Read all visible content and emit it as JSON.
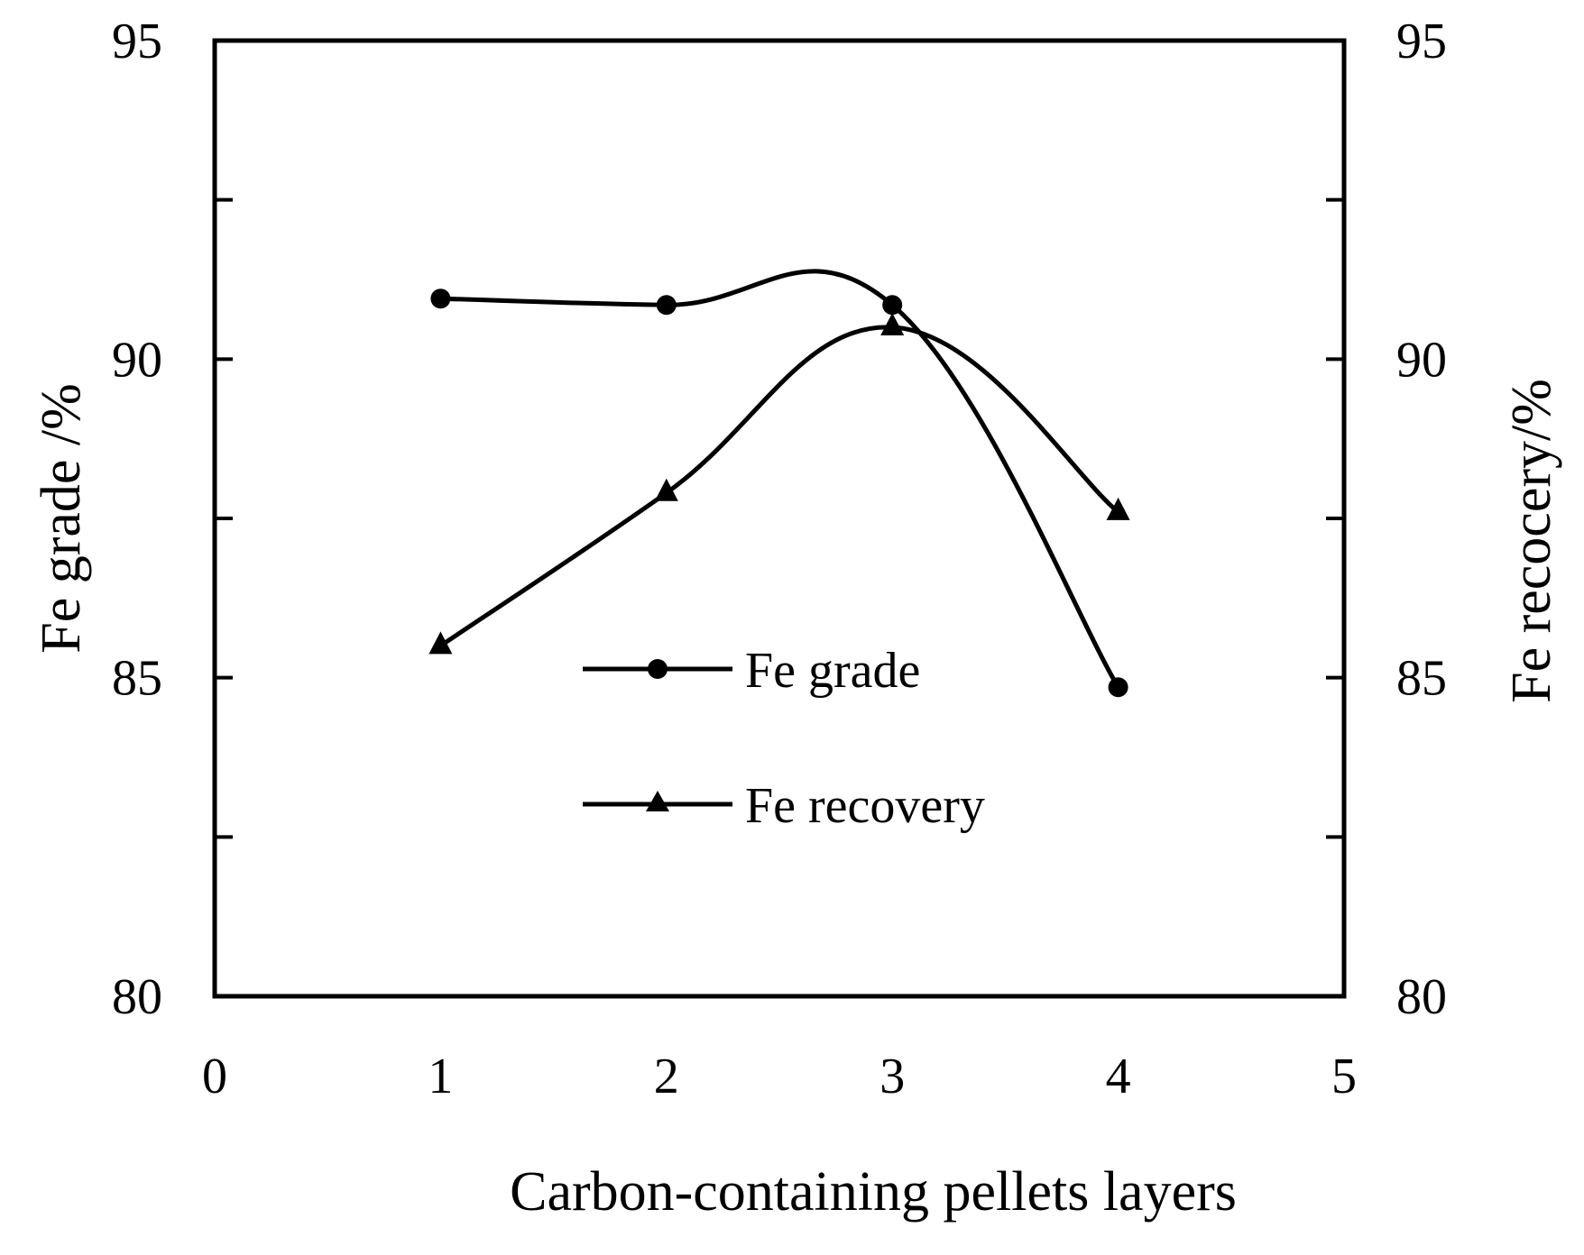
{
  "chart_data": {
    "type": "line",
    "smoothed": true,
    "xlabel": "Carbon-containing pellets layers",
    "ylabel_left": "Fe grade /%",
    "ylabel_right": "Fe recocery/%",
    "xlim": [
      0,
      5
    ],
    "ylim_left": [
      80,
      95
    ],
    "ylim_right": [
      80,
      95
    ],
    "x_ticks": [
      "0",
      "1",
      "2",
      "3",
      "4",
      "5"
    ],
    "y_ticks_left": [
      "80",
      "85",
      "90",
      "95"
    ],
    "y_ticks_right": [
      "80",
      "85",
      "90",
      "95"
    ],
    "minor_ticks": [
      82.5,
      87.5,
      92.5
    ],
    "grid": false,
    "legend_position": "center",
    "series": [
      {
        "name": "Fe grade",
        "marker": "circle",
        "color": "#000000",
        "axis": "left",
        "x": [
          1,
          2,
          3,
          4
        ],
        "y": [
          90.95,
          90.85,
          90.85,
          84.85
        ]
      },
      {
        "name": "Fe recovery",
        "marker": "triangle",
        "color": "#000000",
        "axis": "right",
        "x": [
          1,
          2,
          3,
          4
        ],
        "y": [
          85.5,
          87.9,
          90.5,
          87.6
        ]
      }
    ]
  }
}
